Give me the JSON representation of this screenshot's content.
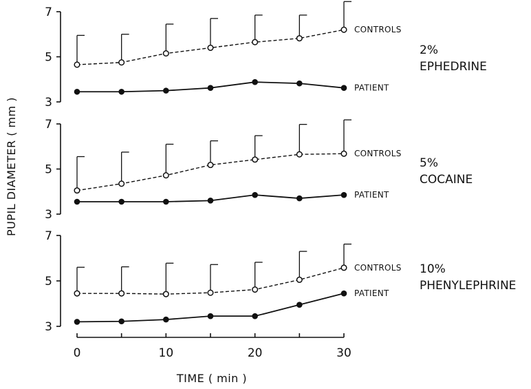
{
  "chart_data": {
    "type": "line",
    "ylabel": "PUPIL DIAMETER ( mm )",
    "xlabel": "TIME ( min )",
    "x": [
      0,
      5,
      10,
      15,
      20,
      25,
      30
    ],
    "x_ticks": [
      "0",
      "10",
      "20",
      "30"
    ],
    "xlim": [
      0,
      30
    ],
    "grid": false,
    "panels": [
      {
        "drug_line1": "2%",
        "drug_line2": "EPHEDRINE",
        "ylim": [
          3,
          7
        ],
        "y_ticks": [
          "3",
          "5",
          "7"
        ],
        "series": [
          {
            "name": "CONTROLS",
            "style": "dashed-open-circle",
            "values": [
              4.65,
              4.75,
              5.15,
              5.4,
              5.65,
              5.82,
              6.2
            ],
            "error_upper": [
              5.95,
              6.0,
              6.45,
              6.7,
              6.85,
              6.85,
              7.45
            ]
          },
          {
            "name": "PATIENT",
            "style": "solid-filled-circle",
            "values": [
              3.45,
              3.45,
              3.5,
              3.62,
              3.88,
              3.82,
              3.62
            ]
          }
        ]
      },
      {
        "drug_line1": "5%",
        "drug_line2": "COCAINE",
        "ylim": [
          3,
          7
        ],
        "y_ticks": [
          "3",
          "5",
          "7"
        ],
        "series": [
          {
            "name": "CONTROLS",
            "style": "dashed-open-circle",
            "values": [
              4.05,
              4.35,
              4.72,
              5.18,
              5.42,
              5.65,
              5.68
            ],
            "error_upper": [
              5.55,
              5.75,
              6.1,
              6.25,
              6.48,
              6.98,
              7.18
            ]
          },
          {
            "name": "PATIENT",
            "style": "solid-filled-circle",
            "values": [
              3.55,
              3.55,
              3.55,
              3.6,
              3.85,
              3.7,
              3.85
            ]
          }
        ]
      },
      {
        "drug_line1": "10%",
        "drug_line2": "PHENYLEPHRINE",
        "ylim": [
          3,
          7
        ],
        "y_ticks": [
          "3",
          "5",
          "7"
        ],
        "series": [
          {
            "name": "CONTROLS",
            "style": "dashed-open-circle",
            "values": [
              4.45,
              4.45,
              4.42,
              4.48,
              4.62,
              5.05,
              5.58
            ],
            "error_upper": [
              5.6,
              5.62,
              5.78,
              5.72,
              5.82,
              6.3,
              6.62
            ]
          },
          {
            "name": "PATIENT",
            "style": "solid-filled-circle",
            "values": [
              3.2,
              3.22,
              3.3,
              3.45,
              3.45,
              3.95,
              4.45
            ]
          }
        ]
      }
    ]
  }
}
